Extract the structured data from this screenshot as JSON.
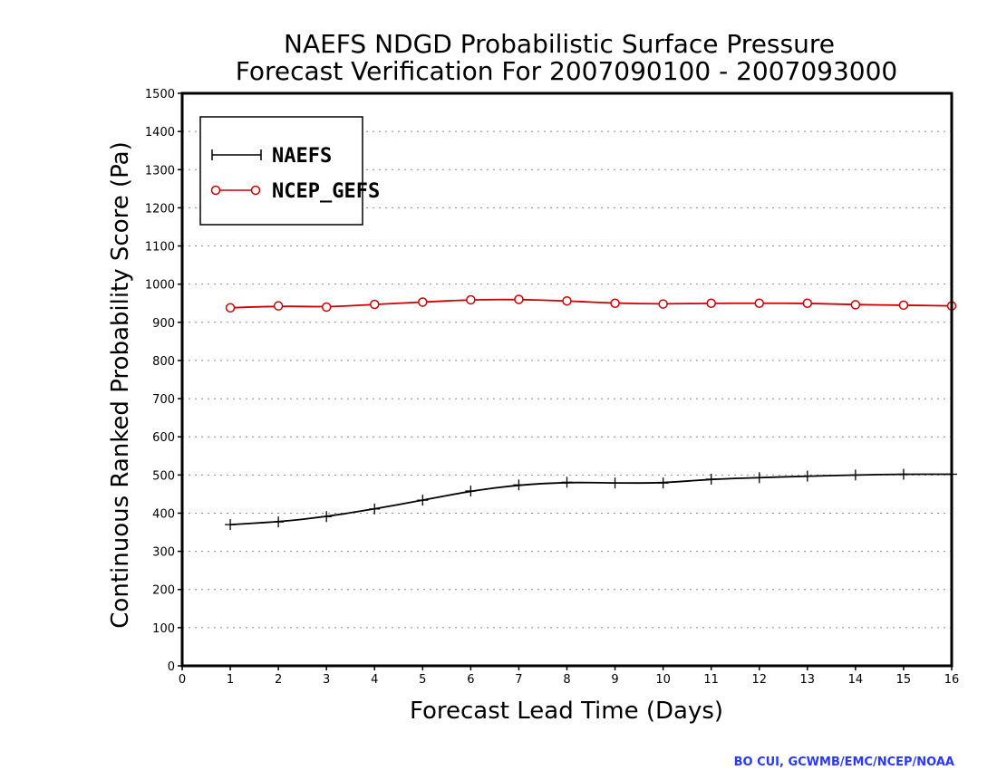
{
  "chart_data": {
    "type": "line",
    "title": [
      "NAEFS NDGD Probabilistic Surface Pressure",
      "Forecast Verification For 2007090100 - 2007093000"
    ],
    "xlabel": "Forecast Lead Time (Days)",
    "ylabel": "Continuous Ranked Probability Score (Pa)",
    "xlim": [
      0,
      16
    ],
    "ylim": [
      0,
      1500
    ],
    "xticks": [
      0,
      1,
      2,
      3,
      4,
      5,
      6,
      7,
      8,
      9,
      10,
      11,
      12,
      13,
      14,
      15,
      16
    ],
    "yticks": [
      0,
      100,
      200,
      300,
      400,
      500,
      600,
      700,
      800,
      900,
      1000,
      1100,
      1200,
      1300,
      1400,
      1500
    ],
    "grid": "horizontal-dotted",
    "legend_position": "top-left",
    "x": [
      1,
      2,
      3,
      4,
      5,
      6,
      7,
      8,
      9,
      10,
      11,
      12,
      13,
      14,
      15,
      16
    ],
    "series": [
      {
        "name": "NAEFS",
        "color": "#000000",
        "marker": "plus",
        "values": [
          370,
          377,
          391,
          411,
          434,
          458,
          474,
          481,
          479,
          479,
          489,
          493,
          497,
          500,
          502,
          502
        ]
      },
      {
        "name": "NCEP_GEFS",
        "color": "#cc0000",
        "marker": "circle",
        "values": [
          938,
          943,
          940,
          947,
          953,
          959,
          960,
          956,
          950,
          948,
          950,
          950,
          950,
          946,
          945,
          943
        ]
      }
    ]
  },
  "credit": "BO CUI, GCWMB/EMC/NCEP/NOAA"
}
